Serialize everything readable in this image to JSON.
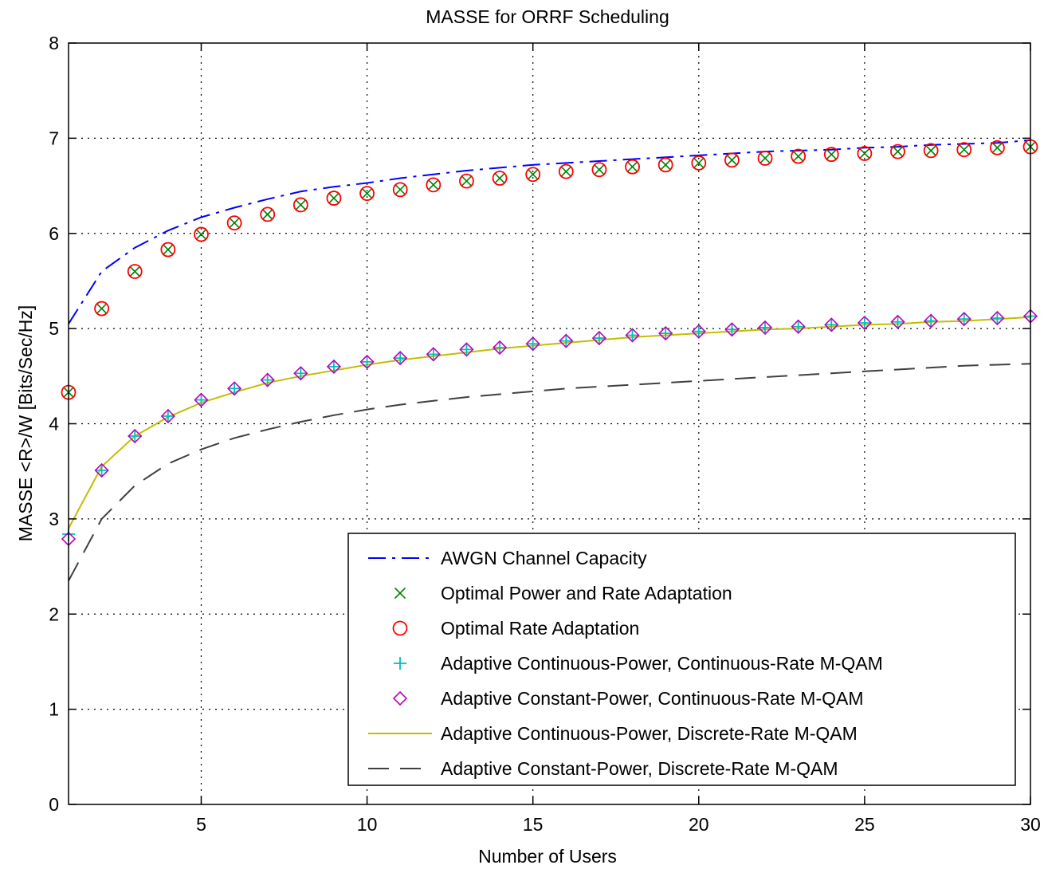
{
  "chart_data": {
    "type": "line",
    "title": "MASSE for ORRF Scheduling",
    "xlabel": "Number of Users",
    "ylabel": "MASSE <R>/W [Bits/Sec/Hz]",
    "xlim": [
      1,
      30
    ],
    "ylim": [
      0,
      8
    ],
    "xticks": [
      5,
      10,
      15,
      20,
      25,
      30
    ],
    "yticks": [
      0,
      1,
      2,
      3,
      4,
      5,
      6,
      7,
      8
    ],
    "grid": true,
    "legend_position": "bottom-right",
    "x": [
      1,
      2,
      3,
      4,
      5,
      6,
      7,
      8,
      9,
      10,
      11,
      12,
      13,
      14,
      15,
      16,
      17,
      18,
      19,
      20,
      21,
      22,
      23,
      24,
      25,
      26,
      27,
      28,
      29,
      30
    ],
    "series": [
      {
        "name": "AWGN Channel Capacity",
        "style": "dash-dot",
        "color": "#0000ff",
        "marker": "none",
        "values": [
          5.05,
          5.6,
          5.85,
          6.03,
          6.17,
          6.27,
          6.36,
          6.44,
          6.49,
          6.53,
          6.58,
          6.62,
          6.66,
          6.69,
          6.72,
          6.74,
          6.76,
          6.78,
          6.8,
          6.82,
          6.84,
          6.86,
          6.87,
          6.88,
          6.9,
          6.91,
          6.93,
          6.94,
          6.95,
          6.98
        ]
      },
      {
        "name": "Optimal Power and Rate Adaptation",
        "style": "none",
        "color": "#008000",
        "marker": "x",
        "values": [
          4.33,
          5.21,
          5.6,
          5.83,
          5.99,
          6.11,
          6.2,
          6.3,
          6.37,
          6.42,
          6.46,
          6.51,
          6.55,
          6.58,
          6.62,
          6.65,
          6.67,
          6.7,
          6.72,
          6.74,
          6.77,
          6.79,
          6.81,
          6.83,
          6.84,
          6.86,
          6.87,
          6.88,
          6.9,
          6.91
        ]
      },
      {
        "name": "Optimal Rate Adaptation",
        "style": "none",
        "color": "#ff0000",
        "marker": "circle",
        "values": [
          4.33,
          5.21,
          5.6,
          5.83,
          5.99,
          6.11,
          6.2,
          6.3,
          6.37,
          6.42,
          6.46,
          6.51,
          6.55,
          6.58,
          6.62,
          6.65,
          6.67,
          6.7,
          6.72,
          6.74,
          6.77,
          6.79,
          6.81,
          6.83,
          6.84,
          6.86,
          6.87,
          6.88,
          6.9,
          6.91
        ]
      },
      {
        "name": "Adaptive Continuous-Power, Continuous-Rate M-QAM",
        "style": "none",
        "color": "#00bfbf",
        "marker": "plus",
        "values": [
          2.84,
          3.51,
          3.87,
          4.08,
          4.25,
          4.37,
          4.46,
          4.53,
          4.6,
          4.65,
          4.69,
          4.73,
          4.78,
          4.8,
          4.84,
          4.87,
          4.9,
          4.93,
          4.95,
          4.97,
          4.99,
          5.01,
          5.02,
          5.04,
          5.06,
          5.07,
          5.08,
          5.1,
          5.11,
          5.13
        ]
      },
      {
        "name": "Adaptive Constant-Power, Continuous-Rate M-QAM",
        "style": "none",
        "color": "#bf00bf",
        "marker": "diamond",
        "values": [
          2.79,
          3.51,
          3.87,
          4.08,
          4.25,
          4.37,
          4.46,
          4.53,
          4.6,
          4.65,
          4.69,
          4.73,
          4.78,
          4.8,
          4.84,
          4.87,
          4.9,
          4.93,
          4.95,
          4.97,
          4.99,
          5.01,
          5.02,
          5.04,
          5.06,
          5.07,
          5.08,
          5.1,
          5.11,
          5.13
        ]
      },
      {
        "name": "Adaptive Continuous-Power, Discrete-Rate M-QAM",
        "style": "solid",
        "color": "#bfbf00",
        "marker": "none",
        "values": [
          2.9,
          3.55,
          3.87,
          4.07,
          4.22,
          4.33,
          4.43,
          4.5,
          4.56,
          4.62,
          4.67,
          4.71,
          4.75,
          4.79,
          4.82,
          4.85,
          4.88,
          4.91,
          4.93,
          4.95,
          4.97,
          4.99,
          5.0,
          5.02,
          5.04,
          5.05,
          5.07,
          5.08,
          5.1,
          5.12
        ]
      },
      {
        "name": "Adaptive Constant-Power, Discrete-Rate M-QAM",
        "style": "dashed",
        "color": "#404040",
        "marker": "none",
        "values": [
          2.35,
          3.0,
          3.35,
          3.58,
          3.73,
          3.85,
          3.94,
          4.02,
          4.09,
          4.15,
          4.2,
          4.24,
          4.28,
          4.31,
          4.34,
          4.37,
          4.39,
          4.41,
          4.43,
          4.45,
          4.47,
          4.49,
          4.51,
          4.53,
          4.55,
          4.57,
          4.59,
          4.61,
          4.62,
          4.63
        ]
      }
    ]
  }
}
